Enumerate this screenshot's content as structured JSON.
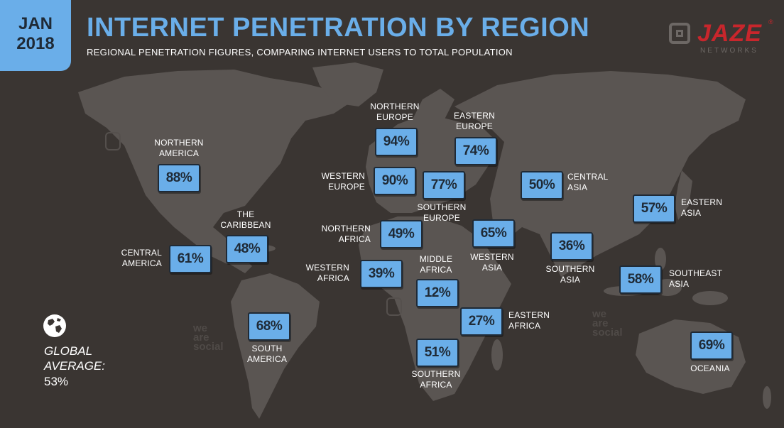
{
  "header": {
    "date_line1": "JAN",
    "date_line2": "2018",
    "title": "INTERNET PENETRATION BY REGION",
    "subtitle": "REGIONAL PENETRATION FIGURES, COMPARING INTERNET USERS TO TOTAL POPULATION"
  },
  "logo": {
    "brand": "JAZE",
    "sub": "NETWORKS",
    "reg": "®"
  },
  "watermark": "we\nare\nsocial",
  "global": {
    "label_line1": "GLOBAL",
    "label_line2": "AVERAGE:",
    "value": "53%"
  },
  "regions": {
    "northern_america": {
      "label": "NORTHERN\nAMERICA",
      "value": "88%"
    },
    "central_america": {
      "label": "CENTRAL\nAMERICA",
      "value": "61%"
    },
    "caribbean": {
      "label": "THE\nCARIBBEAN",
      "value": "48%"
    },
    "south_america": {
      "label": "SOUTH\nAMERICA",
      "value": "68%"
    },
    "northern_europe": {
      "label": "NORTHERN\nEUROPE",
      "value": "94%"
    },
    "western_europe": {
      "label": "WESTERN\nEUROPE",
      "value": "90%"
    },
    "southern_europe": {
      "label": "SOUTHERN\nEUROPE",
      "value": "77%"
    },
    "eastern_europe": {
      "label": "EASTERN\nEUROPE",
      "value": "74%"
    },
    "northern_africa": {
      "label": "NORTHERN\nAFRICA",
      "value": "49%"
    },
    "western_africa": {
      "label": "WESTERN\nAFRICA",
      "value": "39%"
    },
    "middle_africa": {
      "label": "MIDDLE\nAFRICA",
      "value": "12%"
    },
    "eastern_africa": {
      "label": "EASTERN\nAFRICA",
      "value": "27%"
    },
    "southern_africa": {
      "label": "SOUTHERN\nAFRICA",
      "value": "51%"
    },
    "western_asia": {
      "label": "WESTERN\nASIA",
      "value": "65%"
    },
    "central_asia": {
      "label": "CENTRAL\nASIA",
      "value": "50%"
    },
    "southern_asia": {
      "label": "SOUTHERN\nASIA",
      "value": "36%"
    },
    "eastern_asia": {
      "label": "EASTERN\nASIA",
      "value": "57%"
    },
    "southeast_asia": {
      "label": "SOUTHEAST\nASIA",
      "value": "58%"
    },
    "oceania": {
      "label": "OCEANIA",
      "value": "69%"
    }
  },
  "colors": {
    "background": "#3a3532",
    "land": "#5a5552",
    "accent": "#6aaee9",
    "box_text": "#1f2a36",
    "brand": "#c8262c"
  }
}
